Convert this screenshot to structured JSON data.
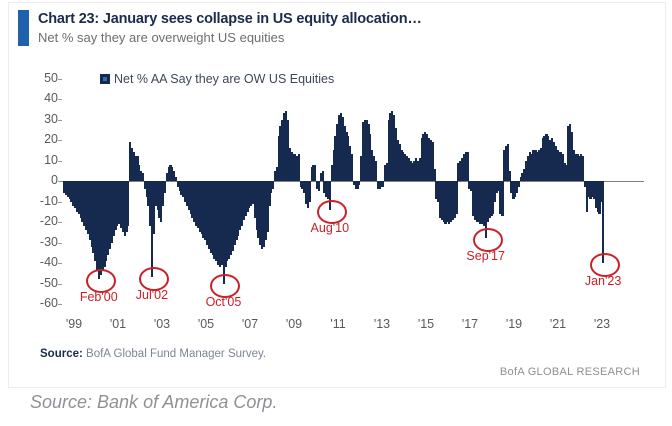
{
  "header": {
    "title": "Chart 23: January sees collapse in US equity allocation…",
    "subtitle": "Net % say they are overweight US equities",
    "accent_color": "#1f62ab"
  },
  "legend": {
    "label": "Net % AA Say they are OW US Equities",
    "marker_color": "#16294e",
    "marker_inner_color": "#2e6db4"
  },
  "chart_data": {
    "type": "bar",
    "title": "Chart 23: January sees collapse in US equity allocation…",
    "subtitle": "Net % say they are overweight US equities",
    "series_name": "Net % AA Say they are OW US Equities",
    "frequency": "monthly",
    "x_start": "1998-07",
    "x_end": "2023-01",
    "ylim": [
      -60,
      50
    ],
    "ytick_step": 10,
    "yticks": [
      50,
      40,
      30,
      20,
      10,
      0,
      -10,
      -20,
      -30,
      -40,
      -50,
      -60
    ],
    "xticks": [
      "'99",
      "'01",
      "'03",
      "'05",
      "'07",
      "'09",
      "'11",
      "'13",
      "'15",
      "'17",
      "'19",
      "'21",
      "'23"
    ],
    "grid": false,
    "legend_position": "top",
    "bar_color": "#16294e",
    "values": [
      -6,
      -7,
      -8,
      -9,
      -10,
      -12,
      -13,
      -15,
      -16,
      -18,
      -20,
      -22,
      -24,
      -26,
      -29,
      -32,
      -35,
      -39,
      -44,
      -48,
      -46,
      -44,
      -42,
      -39,
      -36,
      -33,
      -30,
      -27,
      -24,
      -22,
      -21,
      -23,
      -25,
      -27,
      -25,
      -22,
      19,
      16,
      14,
      12,
      12,
      8,
      5,
      4,
      -4,
      -8,
      -12,
      -22,
      -47,
      -26,
      -12,
      -14,
      -18,
      -20,
      -12,
      -6,
      4,
      7,
      8,
      7,
      5,
      2,
      -3,
      -5,
      -7,
      -8,
      -10,
      -12,
      -14,
      -16,
      -18,
      -20,
      -22,
      -23,
      -25,
      -26,
      -28,
      -29,
      -31,
      -33,
      -35,
      -36,
      -38,
      -39,
      -41,
      -42,
      -41,
      -50,
      -42,
      -39,
      -38,
      -36,
      -34,
      -31,
      -29,
      -27,
      -24,
      -22,
      -19,
      -17,
      -15,
      -13,
      -12,
      -11,
      -18,
      -24,
      -28,
      -31,
      -33,
      -32,
      -29,
      -25,
      -12,
      -6,
      -4,
      5,
      7,
      22,
      27,
      30,
      33,
      34,
      30,
      16,
      14,
      13,
      13,
      12,
      13,
      -3,
      -4,
      -6,
      -11,
      -13,
      -10,
      7,
      8,
      8,
      -4,
      -5,
      4,
      5,
      -6,
      -8,
      -9,
      -14,
      8,
      15,
      22,
      28,
      32,
      33,
      31,
      27,
      24,
      22,
      17,
      13,
      -2,
      -4,
      -4,
      -2,
      12,
      29,
      30,
      30,
      28,
      23,
      15,
      12,
      10,
      -4,
      -4,
      -3,
      -3,
      8,
      9,
      30,
      33,
      34,
      32,
      26,
      20,
      18,
      15,
      14,
      13,
      12,
      11,
      10,
      9,
      10,
      11,
      10,
      11,
      21,
      23,
      24,
      23,
      21,
      20,
      19,
      6,
      -9,
      -10,
      -18,
      -19,
      -20,
      -21,
      -20,
      -21,
      -20,
      -19,
      -18,
      -16,
      9,
      10,
      11,
      13,
      14,
      14,
      -4,
      -5,
      -17,
      -19,
      -20,
      -20,
      -21,
      -21,
      -22,
      -28,
      -20,
      -18,
      -17,
      -16,
      -10,
      -6,
      -5,
      -16,
      -17,
      15,
      17,
      18,
      5,
      -6,
      -9,
      -8,
      -6,
      -3,
      2,
      4,
      6,
      10,
      12,
      14,
      13,
      15,
      15,
      14,
      15,
      16,
      21,
      22,
      23,
      22,
      20,
      21,
      19,
      17,
      15,
      14,
      14,
      13,
      9,
      8,
      27,
      28,
      24,
      15,
      13,
      13,
      12,
      13,
      12,
      -3,
      -15,
      -8,
      -9,
      -8,
      -9,
      -13,
      -15,
      -16,
      -10,
      -40
    ],
    "annotations": [
      {
        "label": "Feb'00",
        "index": 19,
        "value": -48
      },
      {
        "label": "Jul'02",
        "index": 48,
        "value": -47
      },
      {
        "label": "Oct'05",
        "index": 87,
        "value": -50
      },
      {
        "label": "Aug'10",
        "index": 145,
        "value": -14
      },
      {
        "label": "Sep'17",
        "index": 230,
        "value": -28
      },
      {
        "label": "Jan'23",
        "index": 294,
        "value": -40
      }
    ],
    "annotation_color": "#cb2026"
  },
  "footer": {
    "source_label": "Source:",
    "source_text": " BofA Global Fund Manager Survey.",
    "brand": "BofA GLOBAL RESEARCH"
  },
  "caption": "Source: Bank of America Corp."
}
